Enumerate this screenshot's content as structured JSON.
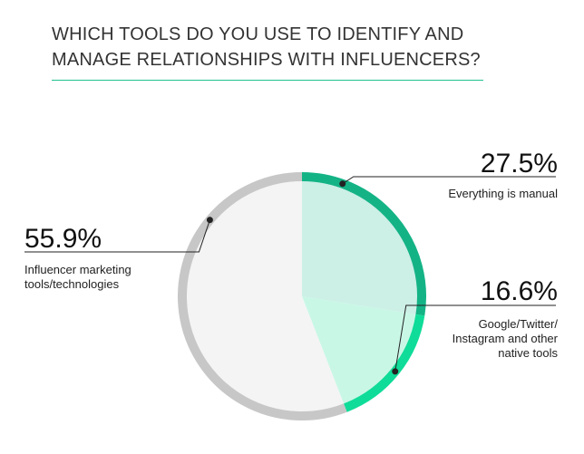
{
  "title": "WHICH TOOLS DO YOU USE TO IDENTIFY AND MANAGE RELATIONSHIPS WITH INFLUENCERS?",
  "colors": {
    "accent": "#22c08f"
  },
  "chart_data": {
    "type": "pie",
    "title": "WHICH TOOLS DO YOU USE TO IDENTIFY AND MANAGE RELATIONSHIPS WITH INFLUENCERS?",
    "slices": [
      {
        "label": "Everything is manual",
        "value": 27.5,
        "display": "27.5%",
        "fill": "#ccefe6",
        "ring": "#14b386"
      },
      {
        "label": "Google/Twitter/ Instagram and other native tools",
        "value": 16.6,
        "display": "16.6%",
        "fill": "#c9f7e6",
        "ring": "#0fdc98"
      },
      {
        "label": "Influencer marketing tools/technologies",
        "value": 55.9,
        "display": "55.9%",
        "fill": "#f4f4f4",
        "ring": "#c7c7c7"
      }
    ]
  }
}
